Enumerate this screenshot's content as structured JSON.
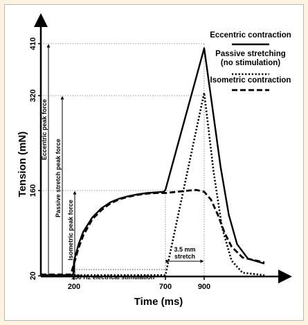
{
  "chart_data": {
    "type": "line",
    "xlabel": "Time (ms)",
    "ylabel": "Tension (mN)",
    "x_ticks": [
      200,
      700,
      900
    ],
    "y_ticks": [
      20,
      160,
      320,
      410
    ],
    "xlim": [
      0,
      1120
    ],
    "ylim": [
      20,
      410
    ],
    "legend_position": "top-right",
    "series": [
      {
        "name": "Eccentric contraction",
        "style": "solid",
        "points": [
          [
            0,
            21
          ],
          [
            180,
            21
          ],
          [
            195,
            22
          ],
          [
            200,
            45
          ],
          [
            225,
            72
          ],
          [
            250,
            92
          ],
          [
            300,
            116
          ],
          [
            350,
            131
          ],
          [
            400,
            141
          ],
          [
            450,
            147
          ],
          [
            500,
            151
          ],
          [
            550,
            154
          ],
          [
            600,
            156
          ],
          [
            650,
            157
          ],
          [
            690,
            158
          ],
          [
            700,
            161
          ],
          [
            900,
            402
          ],
          [
            930,
            300
          ],
          [
            960,
            200
          ],
          [
            990,
            120
          ],
          [
            1020,
            72
          ],
          [
            1060,
            48
          ],
          [
            1120,
            40
          ]
        ]
      },
      {
        "name": "Passive stretching (no stimulation)",
        "style": "dotted",
        "points": [
          [
            0,
            21
          ],
          [
            700,
            21
          ],
          [
            900,
            325
          ],
          [
            935,
            190
          ],
          [
            965,
            100
          ],
          [
            1000,
            45
          ],
          [
            1040,
            25
          ],
          [
            1120,
            21
          ]
        ]
      },
      {
        "name": "Isometric contraction",
        "style": "dashed",
        "points": [
          [
            0,
            22
          ],
          [
            180,
            22
          ],
          [
            200,
            40
          ],
          [
            225,
            66
          ],
          [
            250,
            86
          ],
          [
            300,
            113
          ],
          [
            350,
            128
          ],
          [
            400,
            139
          ],
          [
            450,
            146
          ],
          [
            500,
            150
          ],
          [
            550,
            153
          ],
          [
            600,
            155
          ],
          [
            650,
            156
          ],
          [
            700,
            156
          ],
          [
            760,
            158
          ],
          [
            820,
            160
          ],
          [
            860,
            161
          ],
          [
            900,
            158
          ],
          [
            925,
            145
          ],
          [
            950,
            120
          ],
          [
            975,
            90
          ],
          [
            1000,
            68
          ],
          [
            1040,
            50
          ],
          [
            1120,
            42
          ]
        ]
      }
    ],
    "annotations": {
      "eccentric_peak": "Eccentric peak force",
      "passive_peak": "Passive stretch peak force",
      "isometric_peak": "Isometric peak force",
      "stimulation": "150 Hz electrical stimulation",
      "stretch_line1": "3.5 mm",
      "stretch_line2": "stretch"
    }
  },
  "colors": {
    "background": "#fdf3df",
    "panel": "#ffffff",
    "ink": "#000000"
  }
}
